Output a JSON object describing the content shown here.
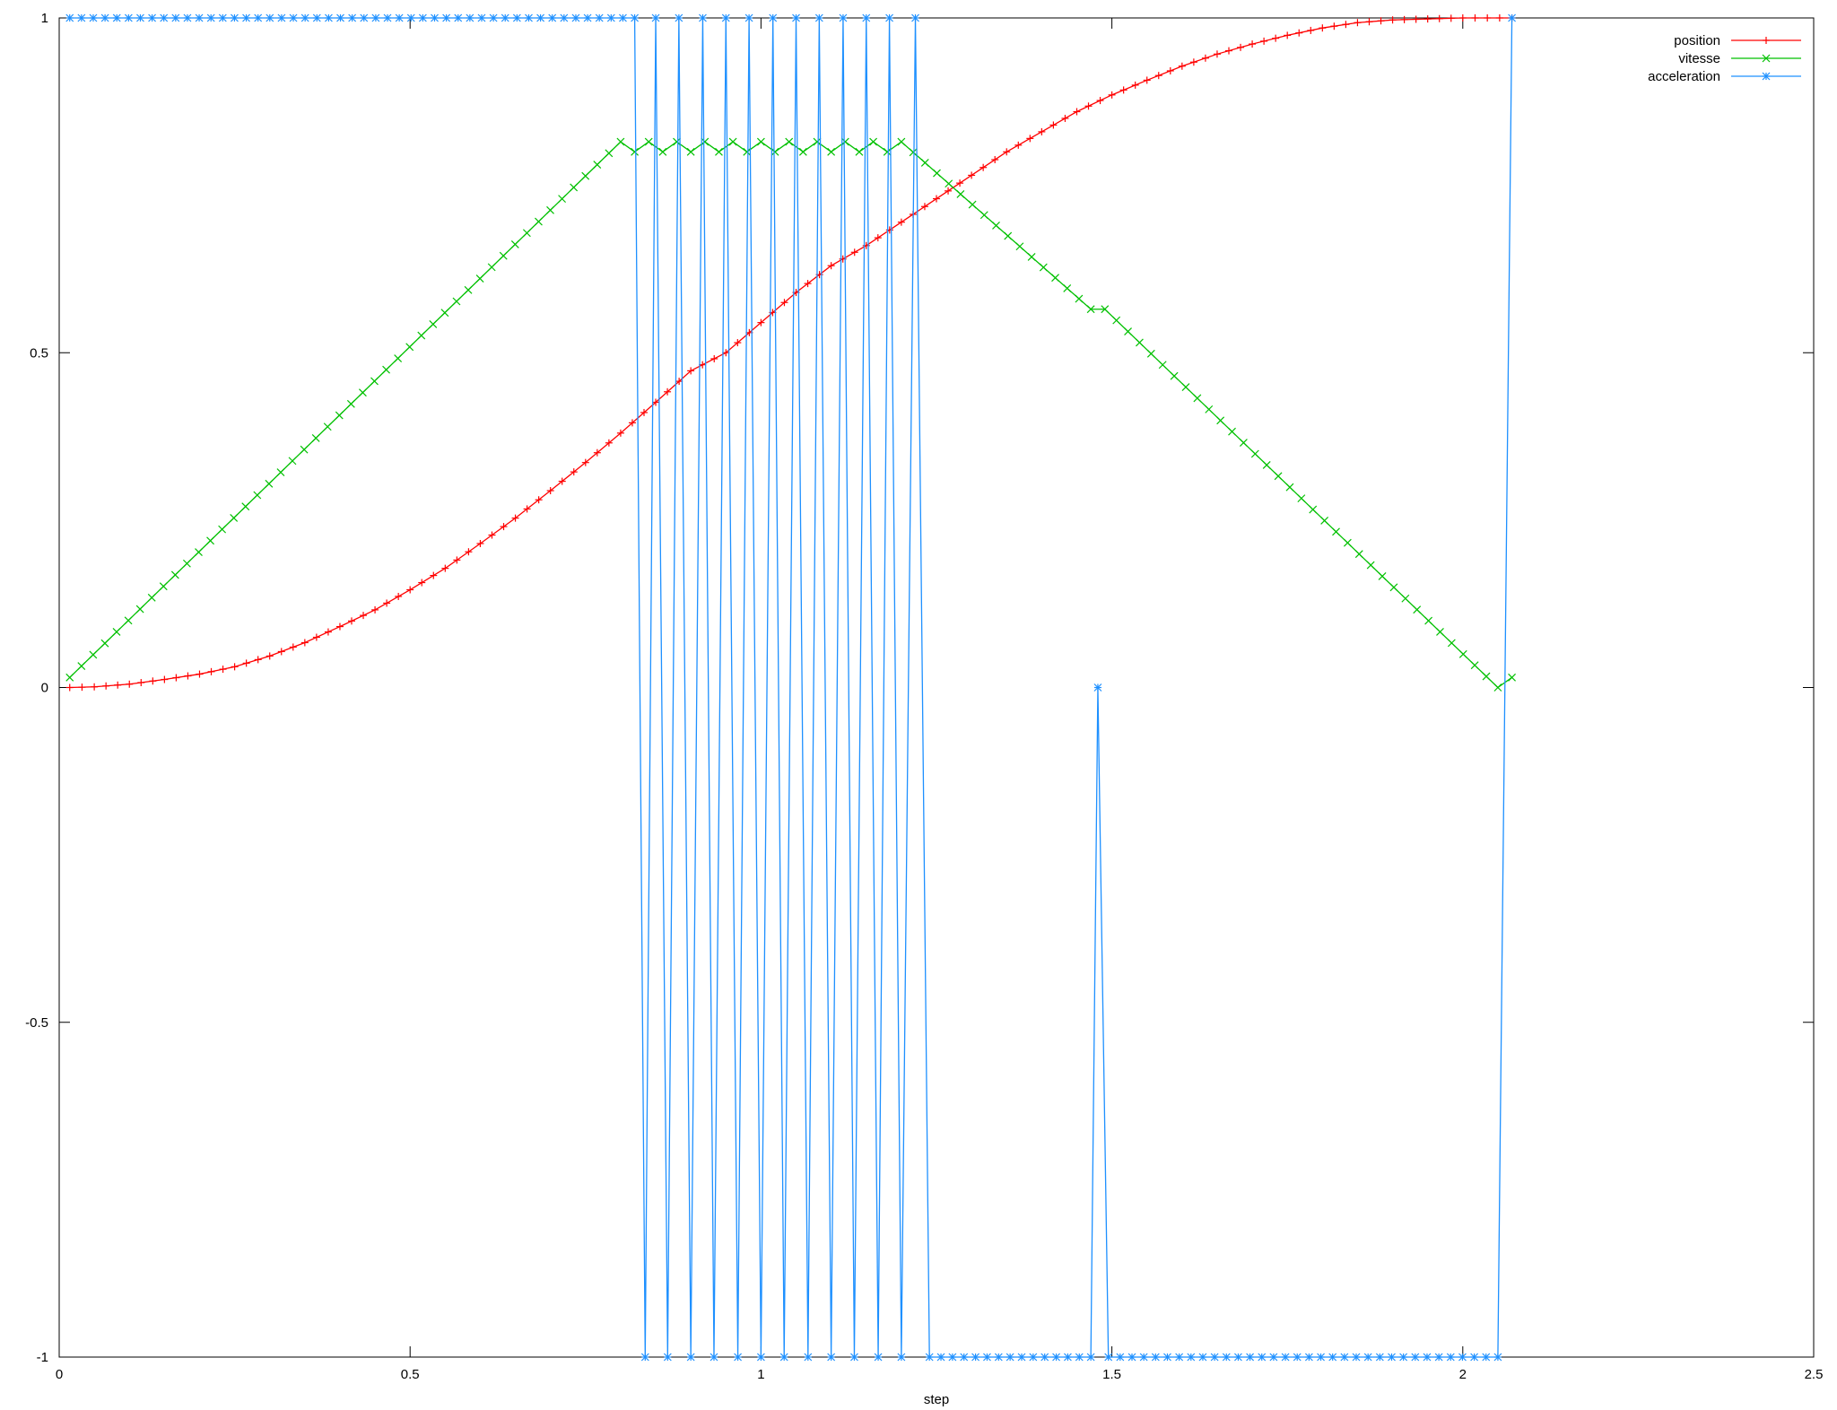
{
  "chart_data": {
    "type": "line",
    "xlabel": "step",
    "ylabel": "",
    "xlim": [
      0,
      2.5
    ],
    "ylim": [
      -1,
      1
    ],
    "x_ticks": [
      "0",
      "0.5",
      "1",
      "1.5",
      "2",
      "2.5"
    ],
    "y_ticks": [
      "-1",
      "-0.5",
      "0",
      "0.5",
      "1"
    ],
    "grid": false,
    "legend_position": "top-right",
    "series": [
      {
        "name": "position",
        "color": "#ff0000",
        "marker": "plus",
        "points": [
          [
            0.015,
            0
          ],
          [
            0.05,
            0.001
          ],
          [
            0.1,
            0.005
          ],
          [
            0.15,
            0.012
          ],
          [
            0.2,
            0.02
          ],
          [
            0.25,
            0.031
          ],
          [
            0.3,
            0.047
          ],
          [
            0.35,
            0.067
          ],
          [
            0.4,
            0.091
          ],
          [
            0.45,
            0.116
          ],
          [
            0.5,
            0.146
          ],
          [
            0.55,
            0.178
          ],
          [
            0.6,
            0.215
          ],
          [
            0.65,
            0.253
          ],
          [
            0.7,
            0.294
          ],
          [
            0.75,
            0.336
          ],
          [
            0.8,
            0.38
          ],
          [
            0.85,
            0.426
          ],
          [
            0.9,
            0.473
          ],
          [
            0.95,
            0.5
          ],
          [
            1.0,
            0.545
          ],
          [
            1.05,
            0.59
          ],
          [
            1.1,
            0.63
          ],
          [
            1.15,
            0.66
          ],
          [
            1.2,
            0.695
          ],
          [
            1.25,
            0.73
          ],
          [
            1.3,
            0.765
          ],
          [
            1.35,
            0.8
          ],
          [
            1.4,
            0.83
          ],
          [
            1.45,
            0.86
          ],
          [
            1.5,
            0.885
          ],
          [
            1.55,
            0.907
          ],
          [
            1.6,
            0.928
          ],
          [
            1.65,
            0.946
          ],
          [
            1.7,
            0.961
          ],
          [
            1.75,
            0.974
          ],
          [
            1.8,
            0.985
          ],
          [
            1.85,
            0.993
          ],
          [
            1.9,
            0.997
          ],
          [
            2.0,
            1.0
          ],
          [
            2.07,
            1.0
          ]
        ]
      },
      {
        "name": "vitesse",
        "color": "#00c000",
        "marker": "cross",
        "points": [
          [
            0.015,
            0.015
          ],
          [
            0.8,
            0.815
          ],
          [
            0.82,
            0.8
          ],
          [
            0.84,
            0.815
          ],
          [
            0.86,
            0.8
          ],
          [
            0.88,
            0.815
          ],
          [
            0.9,
            0.8
          ],
          [
            0.92,
            0.815
          ],
          [
            0.94,
            0.8
          ],
          [
            0.96,
            0.815
          ],
          [
            0.98,
            0.8
          ],
          [
            1.0,
            0.815
          ],
          [
            1.02,
            0.8
          ],
          [
            1.04,
            0.815
          ],
          [
            1.06,
            0.8
          ],
          [
            1.08,
            0.815
          ],
          [
            1.1,
            0.8
          ],
          [
            1.12,
            0.815
          ],
          [
            1.14,
            0.8
          ],
          [
            1.16,
            0.815
          ],
          [
            1.18,
            0.8
          ],
          [
            1.2,
            0.815
          ],
          [
            1.47,
            0.565
          ],
          [
            1.49,
            0.565
          ],
          [
            2.05,
            0.0
          ],
          [
            2.07,
            0.015
          ]
        ]
      },
      {
        "name": "acceleration",
        "color": "#1e90ff",
        "marker": "star",
        "points": [
          [
            0.015,
            1
          ],
          [
            0.82,
            1
          ],
          [
            0.835,
            -1
          ],
          [
            0.85,
            1
          ],
          [
            0.867,
            -1
          ],
          [
            0.883,
            1
          ],
          [
            0.9,
            -1
          ],
          [
            0.917,
            1
          ],
          [
            0.933,
            -1
          ],
          [
            0.95,
            1
          ],
          [
            0.967,
            -1
          ],
          [
            0.983,
            1
          ],
          [
            1.0,
            -1
          ],
          [
            1.017,
            1
          ],
          [
            1.033,
            -1
          ],
          [
            1.05,
            1
          ],
          [
            1.067,
            -1
          ],
          [
            1.083,
            1
          ],
          [
            1.1,
            -1
          ],
          [
            1.117,
            1
          ],
          [
            1.133,
            -1
          ],
          [
            1.15,
            1
          ],
          [
            1.167,
            -1
          ],
          [
            1.183,
            1
          ],
          [
            1.2,
            -1
          ],
          [
            1.22,
            1
          ],
          [
            1.24,
            -1
          ],
          [
            1.47,
            -1
          ],
          [
            1.48,
            0
          ],
          [
            1.495,
            -1
          ],
          [
            2.05,
            -1
          ],
          [
            2.07,
            1
          ]
        ]
      }
    ]
  }
}
